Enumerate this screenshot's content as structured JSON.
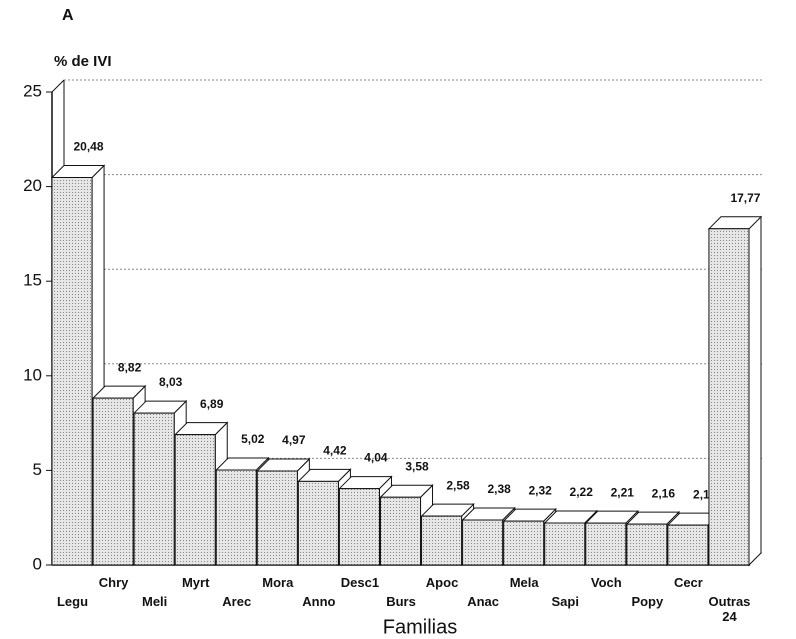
{
  "chart_data": {
    "type": "bar3d",
    "panel_label": "A",
    "y_axis_label": "% de IVI",
    "x_axis_label": "Familias",
    "categories": [
      "Legu",
      "Chry",
      "Meli",
      "Myrt",
      "Arec",
      "Mora",
      "Anno",
      "Desc1",
      "Burs",
      "Apoc",
      "Anac",
      "Mela",
      "Sapi",
      "Voch",
      "Popy",
      "Cecr",
      "Outras 24"
    ],
    "values": [
      20.48,
      8.82,
      8.03,
      6.89,
      5.02,
      4.97,
      4.42,
      4.04,
      3.58,
      2.58,
      2.38,
      2.32,
      2.22,
      2.21,
      2.16,
      2.11,
      17.77
    ],
    "value_labels": [
      "20,48",
      "8,82",
      "8,03",
      "6,89",
      "5,02",
      "4,97",
      "4,42",
      "4,04",
      "3,58",
      "2,58",
      "2,38",
      "2,32",
      "2,22",
      "2,21",
      "2,16",
      "2,11",
      "17,77"
    ],
    "color": "#d9d9d9",
    "ylim": [
      0,
      25
    ],
    "yticks": [
      0,
      5,
      10,
      15,
      20,
      25
    ],
    "grid": true
  }
}
